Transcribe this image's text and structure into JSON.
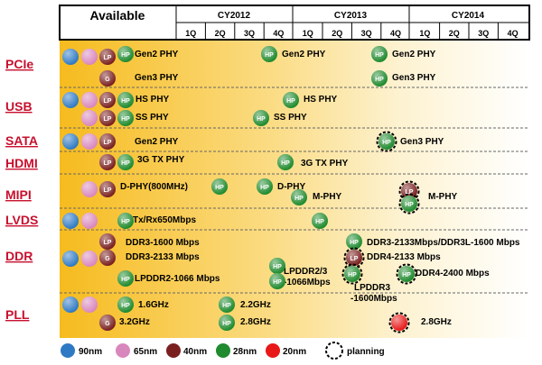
{
  "header": {
    "available": "Available",
    "years": [
      "CY2012",
      "CY2013",
      "CY2014"
    ],
    "quarters": [
      "1Q",
      "2Q",
      "3Q",
      "4Q",
      "1Q",
      "2Q",
      "3Q",
      "4Q",
      "1Q",
      "2Q",
      "3Q",
      "4Q"
    ]
  },
  "categories": [
    "PCIe",
    "USB",
    "SATA",
    "HDMI",
    "MIPI",
    "LVDS",
    "DDR",
    "PLL"
  ],
  "colors": {
    "90nm": "#2e79c4",
    "65nm": "#d887bd",
    "40nm": "#7a1f1f",
    "28nm": "#1f8a2e",
    "20nm": "#e81818",
    "category": "#c8102e"
  },
  "badges": {
    "lp": "LP",
    "hp": "HP",
    "g": "G"
  },
  "items": [
    {
      "label": "Gen2 PHY"
    },
    {
      "label": "Gen2 PHY"
    },
    {
      "label": "Gen2 PHY"
    },
    {
      "label": "Gen3 PHY"
    },
    {
      "label": "Gen3 PHY"
    },
    {
      "label": "HS PHY"
    },
    {
      "label": "HS PHY"
    },
    {
      "label": "SS PHY"
    },
    {
      "label": "SS PHY"
    },
    {
      "label": "Gen2 PHY"
    },
    {
      "label": "Gen3 PHY"
    },
    {
      "label": "3G TX PHY"
    },
    {
      "label": "3G  TX PHY"
    },
    {
      "label": "D-PHY(800MHz)"
    },
    {
      "label": "D-PHY"
    },
    {
      "label": "M-PHY"
    },
    {
      "label": "M-PHY"
    },
    {
      "label": "Tx/Rx650Mbps"
    },
    {
      "label": "DDR3-1600 Mbps"
    },
    {
      "label": "DDR3-2133Mbps/DDR3L-1600 Mbps"
    },
    {
      "label": "DDR3-2133 Mbps"
    },
    {
      "label": "DDR4-2133 Mbps"
    },
    {
      "label": "LPDDR2-1066 Mbps"
    },
    {
      "label": "LPDDR2/3"
    },
    {
      "label": "-1066Mbps"
    },
    {
      "label": "LPDDR3"
    },
    {
      "label": "-1600Mbps"
    },
    {
      "label": "DDR4-2400 Mbps"
    },
    {
      "label": "1.6GHz"
    },
    {
      "label": "2.2GHz"
    },
    {
      "label": "3.2GHz"
    },
    {
      "label": "2.8GHz"
    },
    {
      "label": "2.8GHz"
    }
  ],
  "legend": [
    "90nm",
    "65nm",
    "40nm",
    "28nm",
    "20nm",
    "planning"
  ]
}
